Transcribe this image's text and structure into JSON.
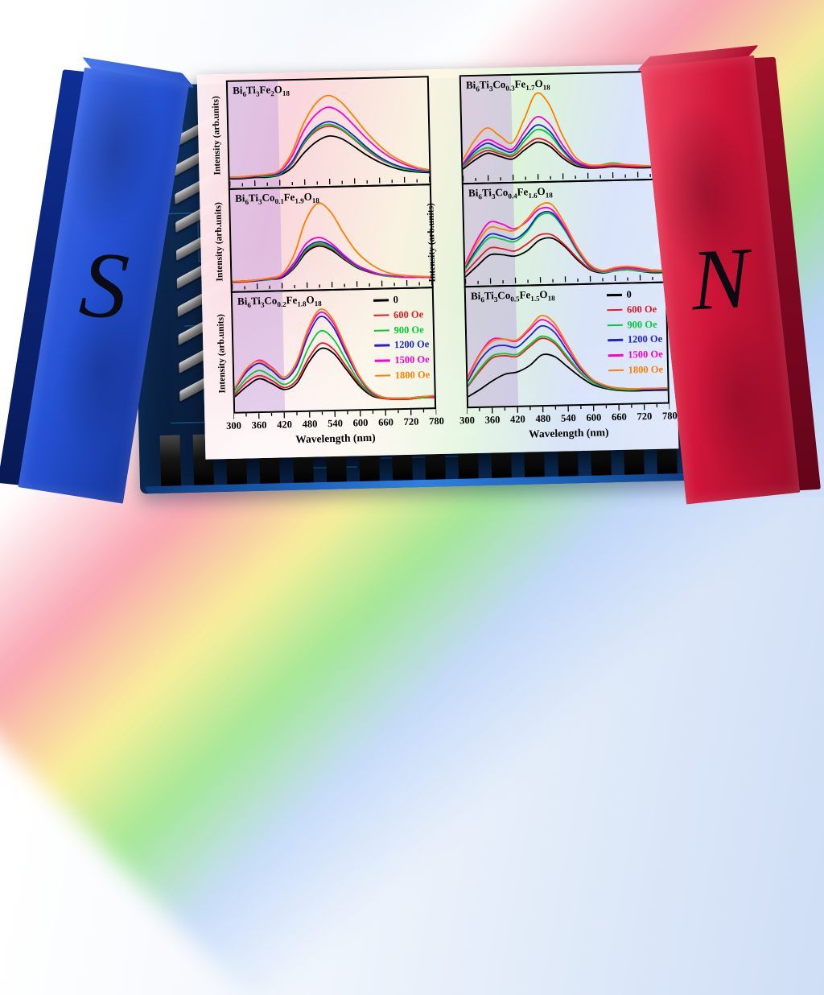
{
  "scene": {
    "magnets": {
      "south": {
        "label": "S",
        "color": "#2450d2"
      },
      "north": {
        "label": "N",
        "color": "#cf1538"
      }
    },
    "beam_colors": [
      "#ffffff",
      "#f89eac",
      "#f9ee8c",
      "#92e480",
      "#a4c6f8"
    ],
    "chip_color": "#0a2244",
    "trace_color": "#25b4e6"
  },
  "axes": {
    "xlabel": "Wavelength (nm)",
    "ylabel": "Intensity (arb.units)",
    "x_range": [
      300,
      780
    ],
    "x_ticks": [
      300,
      360,
      420,
      480,
      540,
      600,
      660,
      720,
      780
    ],
    "minor_step": 30,
    "band_nm": [
      300,
      420
    ],
    "band_color": "rgba(184,146,224,0.38)"
  },
  "legend": [
    {
      "label": "0",
      "color": "#000000"
    },
    {
      "label": "600 Oe",
      "color": "#e31b23"
    },
    {
      "label": "900 Oe",
      "color": "#00cc33"
    },
    {
      "label": "1200 Oe",
      "color": "#2222cc"
    },
    {
      "label": "1500 Oe",
      "color": "#ff00cc"
    },
    {
      "label": "1800 Oe",
      "color": "#ff8000"
    }
  ],
  "chart_data": [
    {
      "type": "line",
      "title_text": "Bi6Ti3Fe2O18",
      "title_parts": [
        [
          "Bi",
          "6"
        ],
        [
          "Ti",
          "3"
        ],
        [
          "Fe",
          "2"
        ],
        [
          "O",
          "18"
        ]
      ],
      "xlabel": "Wavelength (nm)",
      "ylabel": "Intensity (arb.units)",
      "ylim": [
        0,
        1
      ],
      "legend_visible": false,
      "x": [
        300,
        330,
        360,
        390,
        420,
        450,
        480,
        510,
        540,
        570,
        600,
        630,
        660,
        690,
        720,
        750,
        780
      ],
      "series": [
        {
          "name": "0",
          "values": [
            0.05,
            0.05,
            0.06,
            0.06,
            0.08,
            0.16,
            0.32,
            0.44,
            0.5,
            0.47,
            0.38,
            0.28,
            0.2,
            0.14,
            0.1,
            0.08,
            0.07
          ]
        },
        {
          "name": "600 Oe",
          "values": [
            0.06,
            0.06,
            0.07,
            0.07,
            0.09,
            0.2,
            0.42,
            0.56,
            0.61,
            0.57,
            0.46,
            0.34,
            0.24,
            0.17,
            0.12,
            0.09,
            0.08
          ]
        },
        {
          "name": "900 Oe",
          "values": [
            0.06,
            0.06,
            0.07,
            0.07,
            0.09,
            0.21,
            0.43,
            0.58,
            0.63,
            0.58,
            0.47,
            0.35,
            0.25,
            0.17,
            0.12,
            0.09,
            0.08
          ]
        },
        {
          "name": "1200 Oe",
          "values": [
            0.06,
            0.06,
            0.07,
            0.08,
            0.1,
            0.22,
            0.45,
            0.6,
            0.66,
            0.61,
            0.5,
            0.37,
            0.26,
            0.18,
            0.13,
            0.1,
            0.08
          ]
        },
        {
          "name": "1500 Oe",
          "values": [
            0.07,
            0.07,
            0.08,
            0.09,
            0.12,
            0.28,
            0.56,
            0.74,
            0.82,
            0.76,
            0.62,
            0.47,
            0.34,
            0.24,
            0.17,
            0.12,
            0.1
          ]
        },
        {
          "name": "1800 Oe",
          "values": [
            0.07,
            0.07,
            0.08,
            0.09,
            0.13,
            0.32,
            0.64,
            0.86,
            0.95,
            0.88,
            0.72,
            0.54,
            0.39,
            0.27,
            0.19,
            0.13,
            0.1
          ]
        }
      ]
    },
    {
      "type": "line",
      "title_text": "Bi6Ti3Co0.1Fe1.9O18",
      "title_parts": [
        [
          "Bi",
          "6"
        ],
        [
          "Ti",
          "3"
        ],
        [
          "Co",
          "0.1"
        ],
        [
          "Fe",
          "1.9"
        ],
        [
          "O",
          "18"
        ]
      ],
      "xlabel": "Wavelength (nm)",
      "ylabel": "Intensity (arb.units)",
      "ylim": [
        0,
        1
      ],
      "legend_visible": false,
      "x": [
        300,
        330,
        360,
        390,
        420,
        450,
        480,
        510,
        540,
        570,
        600,
        630,
        660,
        690,
        720,
        750,
        780
      ],
      "series": [
        {
          "name": "0",
          "values": [
            0.05,
            0.05,
            0.06,
            0.07,
            0.09,
            0.2,
            0.38,
            0.45,
            0.4,
            0.29,
            0.19,
            0.13,
            0.09,
            0.07,
            0.06,
            0.06,
            0.05
          ]
        },
        {
          "name": "600 Oe",
          "values": [
            0.05,
            0.05,
            0.06,
            0.07,
            0.1,
            0.21,
            0.4,
            0.47,
            0.42,
            0.3,
            0.2,
            0.13,
            0.09,
            0.07,
            0.06,
            0.06,
            0.05
          ]
        },
        {
          "name": "900 Oe",
          "values": [
            0.05,
            0.06,
            0.06,
            0.07,
            0.1,
            0.22,
            0.41,
            0.48,
            0.43,
            0.31,
            0.2,
            0.14,
            0.09,
            0.07,
            0.06,
            0.06,
            0.05
          ]
        },
        {
          "name": "1200 Oe",
          "values": [
            0.05,
            0.06,
            0.06,
            0.08,
            0.1,
            0.23,
            0.43,
            0.5,
            0.45,
            0.32,
            0.21,
            0.14,
            0.1,
            0.08,
            0.06,
            0.06,
            0.05
          ]
        },
        {
          "name": "1500 Oe",
          "values": [
            0.06,
            0.06,
            0.07,
            0.08,
            0.11,
            0.26,
            0.48,
            0.55,
            0.48,
            0.34,
            0.22,
            0.15,
            0.1,
            0.08,
            0.06,
            0.06,
            0.05
          ]
        },
        {
          "name": "1800 Oe",
          "values": [
            0.06,
            0.06,
            0.07,
            0.09,
            0.13,
            0.35,
            0.75,
            0.95,
            0.85,
            0.6,
            0.38,
            0.24,
            0.15,
            0.1,
            0.08,
            0.07,
            0.06
          ]
        }
      ]
    },
    {
      "type": "line",
      "title_text": "Bi6Ti3Co0.2Fe1.8O18",
      "title_parts": [
        [
          "Bi",
          "6"
        ],
        [
          "Ti",
          "3"
        ],
        [
          "Co",
          "0.2"
        ],
        [
          "Fe",
          "1.8"
        ],
        [
          "O",
          "18"
        ]
      ],
      "xlabel": "Wavelength (nm)",
      "ylabel": "Intensity (arb.units)",
      "ylim": [
        0,
        1
      ],
      "legend_visible": true,
      "x": [
        300,
        330,
        360,
        390,
        420,
        450,
        480,
        510,
        540,
        570,
        600,
        630,
        660,
        690,
        720,
        750,
        780
      ],
      "series": [
        {
          "name": "0",
          "values": [
            0.1,
            0.2,
            0.27,
            0.22,
            0.16,
            0.22,
            0.42,
            0.55,
            0.5,
            0.34,
            0.18,
            0.08,
            0.05,
            0.04,
            0.04,
            0.05,
            0.05
          ]
        },
        {
          "name": "600 Oe",
          "values": [
            0.12,
            0.24,
            0.3,
            0.25,
            0.18,
            0.25,
            0.46,
            0.6,
            0.54,
            0.37,
            0.2,
            0.09,
            0.05,
            0.04,
            0.04,
            0.05,
            0.05
          ]
        },
        {
          "name": "900 Oe",
          "values": [
            0.14,
            0.28,
            0.35,
            0.29,
            0.21,
            0.3,
            0.56,
            0.72,
            0.64,
            0.43,
            0.22,
            0.1,
            0.06,
            0.05,
            0.05,
            0.05,
            0.06
          ]
        },
        {
          "name": "1200 Oe",
          "values": [
            0.17,
            0.34,
            0.42,
            0.35,
            0.26,
            0.38,
            0.68,
            0.86,
            0.76,
            0.5,
            0.26,
            0.11,
            0.06,
            0.05,
            0.05,
            0.06,
            0.06
          ]
        },
        {
          "name": "1500 Oe",
          "values": [
            0.18,
            0.36,
            0.45,
            0.38,
            0.28,
            0.41,
            0.72,
            0.9,
            0.8,
            0.53,
            0.27,
            0.12,
            0.06,
            0.05,
            0.05,
            0.06,
            0.06
          ]
        },
        {
          "name": "1800 Oe",
          "values": [
            0.18,
            0.37,
            0.44,
            0.37,
            0.28,
            0.42,
            0.74,
            0.93,
            0.83,
            0.55,
            0.28,
            0.12,
            0.06,
            0.05,
            0.05,
            0.06,
            0.07
          ]
        }
      ]
    },
    {
      "type": "line",
      "title_text": "Bi6Ti3Co0.3Fe1.7O18",
      "title_parts": [
        [
          "Bi",
          "6"
        ],
        [
          "Ti",
          "3"
        ],
        [
          "Co",
          "0.3"
        ],
        [
          "Fe",
          "1.7"
        ],
        [
          "O",
          "18"
        ]
      ],
      "xlabel": "Wavelength (nm)",
      "ylabel": "Intensity (arb.units)",
      "ylim": [
        0,
        1
      ],
      "legend_visible": false,
      "x": [
        300,
        330,
        360,
        390,
        420,
        450,
        480,
        510,
        540,
        570,
        600,
        630,
        660,
        690,
        720,
        750,
        780
      ],
      "series": [
        {
          "name": "0",
          "values": [
            0.1,
            0.2,
            0.27,
            0.23,
            0.2,
            0.3,
            0.38,
            0.33,
            0.2,
            0.11,
            0.08,
            0.08,
            0.09,
            0.08,
            0.07,
            0.07,
            0.07
          ]
        },
        {
          "name": "600 Oe",
          "values": [
            0.12,
            0.24,
            0.3,
            0.26,
            0.23,
            0.34,
            0.42,
            0.37,
            0.23,
            0.13,
            0.09,
            0.09,
            0.1,
            0.09,
            0.08,
            0.08,
            0.08
          ]
        },
        {
          "name": "900 Oe",
          "values": [
            0.13,
            0.27,
            0.33,
            0.28,
            0.25,
            0.4,
            0.52,
            0.46,
            0.28,
            0.14,
            0.1,
            0.11,
            0.13,
            0.11,
            0.09,
            0.08,
            0.08
          ]
        },
        {
          "name": "1200 Oe",
          "values": [
            0.15,
            0.3,
            0.38,
            0.32,
            0.28,
            0.44,
            0.57,
            0.5,
            0.3,
            0.15,
            0.1,
            0.1,
            0.11,
            0.1,
            0.09,
            0.08,
            0.08
          ]
        },
        {
          "name": "1500 Oe",
          "values": [
            0.16,
            0.33,
            0.42,
            0.36,
            0.31,
            0.5,
            0.66,
            0.58,
            0.35,
            0.17,
            0.11,
            0.1,
            0.11,
            0.1,
            0.09,
            0.09,
            0.09
          ]
        },
        {
          "name": "1800 Oe",
          "values": [
            0.2,
            0.42,
            0.55,
            0.46,
            0.38,
            0.64,
            0.92,
            0.8,
            0.46,
            0.21,
            0.12,
            0.11,
            0.12,
            0.11,
            0.1,
            0.09,
            0.09
          ]
        }
      ]
    },
    {
      "type": "line",
      "title_text": "Bi6Ti3Co0.4Fe1.6O18",
      "title_parts": [
        [
          "Bi",
          "6"
        ],
        [
          "Ti",
          "3"
        ],
        [
          "Co",
          "0.4"
        ],
        [
          "Fe",
          "1.6"
        ],
        [
          "O",
          "18"
        ]
      ],
      "xlabel": "Wavelength (nm)",
      "ylabel": "Intensity (arb.units)",
      "ylim": [
        0,
        1
      ],
      "legend_visible": false,
      "x": [
        300,
        330,
        360,
        390,
        420,
        450,
        480,
        510,
        540,
        570,
        600,
        630,
        660,
        690,
        720,
        750,
        780
      ],
      "series": [
        {
          "name": "0",
          "values": [
            0.05,
            0.18,
            0.3,
            0.3,
            0.28,
            0.34,
            0.46,
            0.48,
            0.38,
            0.22,
            0.1,
            0.06,
            0.08,
            0.09,
            0.07,
            0.05,
            0.05
          ]
        },
        {
          "name": "600 Oe",
          "values": [
            0.1,
            0.25,
            0.38,
            0.37,
            0.34,
            0.42,
            0.52,
            0.52,
            0.4,
            0.24,
            0.11,
            0.07,
            0.09,
            0.1,
            0.08,
            0.06,
            0.06
          ]
        },
        {
          "name": "900 Oe",
          "values": [
            0.14,
            0.35,
            0.5,
            0.48,
            0.45,
            0.56,
            0.74,
            0.76,
            0.58,
            0.32,
            0.13,
            0.07,
            0.08,
            0.09,
            0.07,
            0.06,
            0.06
          ]
        },
        {
          "name": "1200 Oe",
          "values": [
            0.16,
            0.38,
            0.54,
            0.52,
            0.48,
            0.58,
            0.76,
            0.78,
            0.6,
            0.34,
            0.14,
            0.08,
            0.11,
            0.12,
            0.1,
            0.08,
            0.07
          ]
        },
        {
          "name": "1500 Oe",
          "values": [
            0.2,
            0.48,
            0.68,
            0.66,
            0.6,
            0.68,
            0.82,
            0.82,
            0.62,
            0.35,
            0.15,
            0.08,
            0.1,
            0.11,
            0.09,
            0.07,
            0.07
          ]
        },
        {
          "name": "1800 Oe",
          "values": [
            0.18,
            0.44,
            0.62,
            0.6,
            0.58,
            0.7,
            0.86,
            0.88,
            0.66,
            0.37,
            0.16,
            0.09,
            0.12,
            0.13,
            0.11,
            0.08,
            0.07
          ]
        }
      ]
    },
    {
      "type": "line",
      "title_text": "Bi6Ti3Co0.5Fe1.5O18",
      "title_parts": [
        [
          "Bi",
          "6"
        ],
        [
          "Ti",
          "3"
        ],
        [
          "Co",
          "0.5"
        ],
        [
          "Fe",
          "1.5"
        ],
        [
          "O",
          "18"
        ]
      ],
      "xlabel": "Wavelength (nm)",
      "ylabel": "Intensity (arb.units)",
      "ylim": [
        0,
        1
      ],
      "legend_visible": true,
      "x": [
        300,
        330,
        360,
        390,
        420,
        450,
        480,
        510,
        540,
        570,
        600,
        630,
        660,
        690,
        720,
        750,
        780
      ],
      "series": [
        {
          "name": "0",
          "values": [
            0.05,
            0.12,
            0.2,
            0.26,
            0.28,
            0.34,
            0.44,
            0.42,
            0.32,
            0.22,
            0.14,
            0.1,
            0.08,
            0.07,
            0.07,
            0.07,
            0.07
          ]
        },
        {
          "name": "600 Oe",
          "values": [
            0.15,
            0.3,
            0.42,
            0.44,
            0.43,
            0.52,
            0.6,
            0.55,
            0.4,
            0.26,
            0.16,
            0.11,
            0.09,
            0.08,
            0.08,
            0.08,
            0.08
          ]
        },
        {
          "name": "900 Oe",
          "values": [
            0.16,
            0.32,
            0.44,
            0.46,
            0.45,
            0.54,
            0.62,
            0.57,
            0.42,
            0.27,
            0.16,
            0.11,
            0.09,
            0.08,
            0.08,
            0.08,
            0.08
          ]
        },
        {
          "name": "1200 Oe",
          "values": [
            0.2,
            0.4,
            0.52,
            0.54,
            0.52,
            0.62,
            0.72,
            0.66,
            0.48,
            0.3,
            0.18,
            0.12,
            0.1,
            0.09,
            0.08,
            0.08,
            0.08
          ]
        },
        {
          "name": "1500 Oe",
          "values": [
            0.24,
            0.46,
            0.6,
            0.6,
            0.58,
            0.68,
            0.78,
            0.71,
            0.52,
            0.32,
            0.19,
            0.13,
            0.1,
            0.09,
            0.09,
            0.09,
            0.09
          ]
        },
        {
          "name": "1800 Oe",
          "values": [
            0.22,
            0.45,
            0.58,
            0.6,
            0.59,
            0.7,
            0.82,
            0.75,
            0.54,
            0.33,
            0.19,
            0.13,
            0.1,
            0.09,
            0.09,
            0.09,
            0.09
          ]
        }
      ]
    }
  ]
}
